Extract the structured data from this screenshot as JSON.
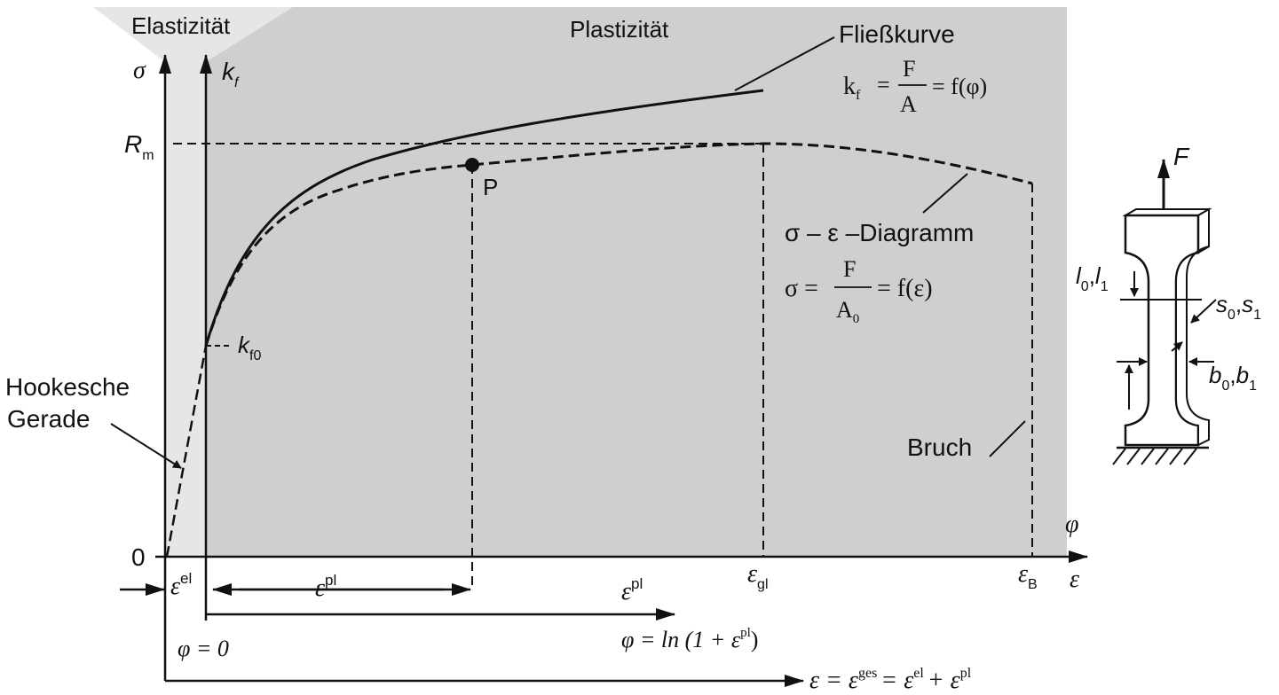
{
  "regions": {
    "elastic": "Elastizität",
    "plastic": "Plastizität"
  },
  "axes": {
    "sigma": "σ",
    "kf": "k",
    "kf_sub": "f",
    "phi": "φ",
    "eps": "ε",
    "zero": "0"
  },
  "points": {
    "Rm": "R",
    "Rm_sub": "m",
    "kf0": "k",
    "kf0_sub": "f0",
    "P": "P",
    "eps_gl": "ε",
    "eps_gl_sub": "gl",
    "eps_B": "ε",
    "eps_B_sub": "B"
  },
  "curves": {
    "flow_curve": "Fließkurve",
    "flow_formula_lhs": "k",
    "flow_formula_lhs_sub": "f",
    "flow_formula_num": "F",
    "flow_formula_den": "A",
    "flow_formula_rhs": "= f(φ)",
    "sigma_eps_label": "σ – ε –Diagramm",
    "se_formula_lhs": "σ =",
    "se_formula_num": "F",
    "se_formula_den": "A",
    "se_formula_den_sub": "0",
    "se_formula_rhs": "= f(ε)",
    "hooke_line1": "Hookesche",
    "hooke_line2": "Gerade",
    "fracture": "Bruch"
  },
  "strains": {
    "eps_el": "ε",
    "eps_el_sup": "el",
    "eps_pl": "ε",
    "eps_pl_sup": "pl",
    "eps_pl2": "ε",
    "eps_pl2_sup": "pl",
    "phi_zero": "φ = 0",
    "phi_formula": "φ = ln (1 + ε",
    "phi_formula_sup": "pl",
    "phi_formula_end": ")",
    "eps_total_a": "ε = ε",
    "eps_total_a_sup": "ges",
    "eps_total_b": "= ε",
    "eps_total_b_sup": "el",
    "eps_total_c": "+ ε",
    "eps_total_c_sup": "pl"
  },
  "specimen": {
    "force": "F",
    "l_label": "l",
    "l_sub0": "0",
    "l_sub1": "1",
    "s_label": "s",
    "s_sub0": "0",
    "s_sub1": "1",
    "b_label": "b",
    "b_sub0": "0",
    "b_sub1": "1"
  }
}
